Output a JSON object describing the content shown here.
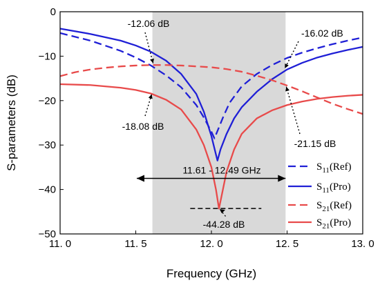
{
  "chart_data": {
    "type": "line",
    "xlabel": "Frequency (GHz)",
    "ylabel": "S-parameters (dB)",
    "xlim": [
      11.0,
      13.0
    ],
    "ylim": [
      -50,
      0
    ],
    "x_ticks": [
      11.0,
      11.5,
      12.0,
      12.5,
      13.0
    ],
    "x_tick_labels": [
      "11. 0",
      "11. 5",
      "12. 0",
      "12. 5",
      "13. 0"
    ],
    "y_ticks": [
      0,
      -10,
      -20,
      -30,
      -40,
      -50
    ],
    "y_tick_labels": [
      "0",
      "−10",
      "−20",
      "−30",
      "−40",
      "−50"
    ],
    "grid": false,
    "legend_placement": "bottom-right",
    "shaded_band": {
      "x_from": 11.61,
      "x_to": 12.49,
      "color": "#d9d9d9"
    },
    "band_label": "11.61 - 12.49 GHz",
    "colors": {
      "blue": "#1f1fd6",
      "red": "#e84a4a"
    },
    "series": [
      {
        "name": "S11(Ref)",
        "name_main": "S",
        "name_sub": "11",
        "name_suffix": "(Ref)",
        "color": "#1f1fd6",
        "dash": true,
        "x": [
          11.0,
          11.2,
          11.4,
          11.5,
          11.6,
          11.7,
          11.8,
          11.9,
          11.95,
          12.0,
          12.02,
          12.05,
          12.08,
          12.12,
          12.2,
          12.3,
          12.4,
          12.5,
          12.6,
          12.7,
          12.8,
          12.9,
          13.0
        ],
        "y": [
          -4.8,
          -6.5,
          -8.8,
          -10.3,
          -12.1,
          -14.3,
          -17.0,
          -21.0,
          -23.8,
          -27.0,
          -28.5,
          -26.0,
          -23.5,
          -20.5,
          -16.8,
          -14.0,
          -12.0,
          -10.4,
          -9.2,
          -8.2,
          -7.3,
          -6.5,
          -5.8
        ]
      },
      {
        "name": "S11(Pro)",
        "name_main": "S",
        "name_sub": "11",
        "name_suffix": "(Pro)",
        "color": "#1f1fd6",
        "dash": false,
        "x": [
          11.0,
          11.2,
          11.4,
          11.5,
          11.6,
          11.7,
          11.8,
          11.9,
          11.95,
          12.0,
          12.04,
          12.06,
          12.1,
          12.15,
          12.2,
          12.3,
          12.4,
          12.5,
          12.6,
          12.7,
          12.8,
          12.9,
          13.0
        ],
        "y": [
          -3.8,
          -5.0,
          -6.5,
          -7.6,
          -9.0,
          -11.0,
          -14.0,
          -18.5,
          -22.5,
          -28.0,
          -33.5,
          -31.0,
          -27.5,
          -24.0,
          -21.5,
          -18.0,
          -15.2,
          -13.0,
          -11.5,
          -10.3,
          -9.4,
          -8.6,
          -7.9
        ]
      },
      {
        "name": "S21(Ref)",
        "name_main": "S",
        "name_sub": "21",
        "name_suffix": "(Ref)",
        "color": "#e84a4a",
        "dash": true,
        "x": [
          11.0,
          11.1,
          11.2,
          11.3,
          11.4,
          11.5,
          11.6,
          11.7,
          11.8,
          11.9,
          12.0,
          12.1,
          12.2,
          12.3,
          12.4,
          12.5,
          12.6,
          12.7,
          12.8,
          12.9,
          13.0
        ],
        "y": [
          -14.5,
          -13.6,
          -13.0,
          -12.6,
          -12.3,
          -12.1,
          -12.0,
          -12.0,
          -12.1,
          -12.3,
          -12.5,
          -12.9,
          -13.5,
          -14.4,
          -15.4,
          -16.6,
          -17.9,
          -19.3,
          -20.7,
          -21.9,
          -23.0
        ]
      },
      {
        "name": "S21(Pro)",
        "name_main": "S",
        "name_sub": "21",
        "name_suffix": "(Pro)",
        "color": "#e84a4a",
        "dash": false,
        "x": [
          11.0,
          11.2,
          11.4,
          11.5,
          11.6,
          11.7,
          11.8,
          11.9,
          11.95,
          12.0,
          12.03,
          12.05,
          12.07,
          12.1,
          12.15,
          12.2,
          12.3,
          12.4,
          12.5,
          12.6,
          12.7,
          12.8,
          12.9,
          13.0
        ],
        "y": [
          -16.3,
          -16.5,
          -17.1,
          -17.6,
          -18.4,
          -19.8,
          -22.0,
          -26.5,
          -30.0,
          -35.0,
          -40.0,
          -44.3,
          -41.0,
          -36.0,
          -31.0,
          -27.5,
          -24.0,
          -22.2,
          -21.0,
          -20.2,
          -19.6,
          -19.2,
          -18.9,
          -18.7
        ]
      }
    ],
    "annotations": [
      {
        "id": "s11-ref-cut-left",
        "text": "-12.06 dB"
      },
      {
        "id": "s21-ref-cut-left",
        "text": "-18.08 dB"
      },
      {
        "id": "s11-ref-cut-right",
        "text": "-16.02 dB"
      },
      {
        "id": "s21-ref-cut-right",
        "text": "-21.15 dB"
      },
      {
        "id": "min",
        "text": "-44.28 dB"
      }
    ]
  }
}
